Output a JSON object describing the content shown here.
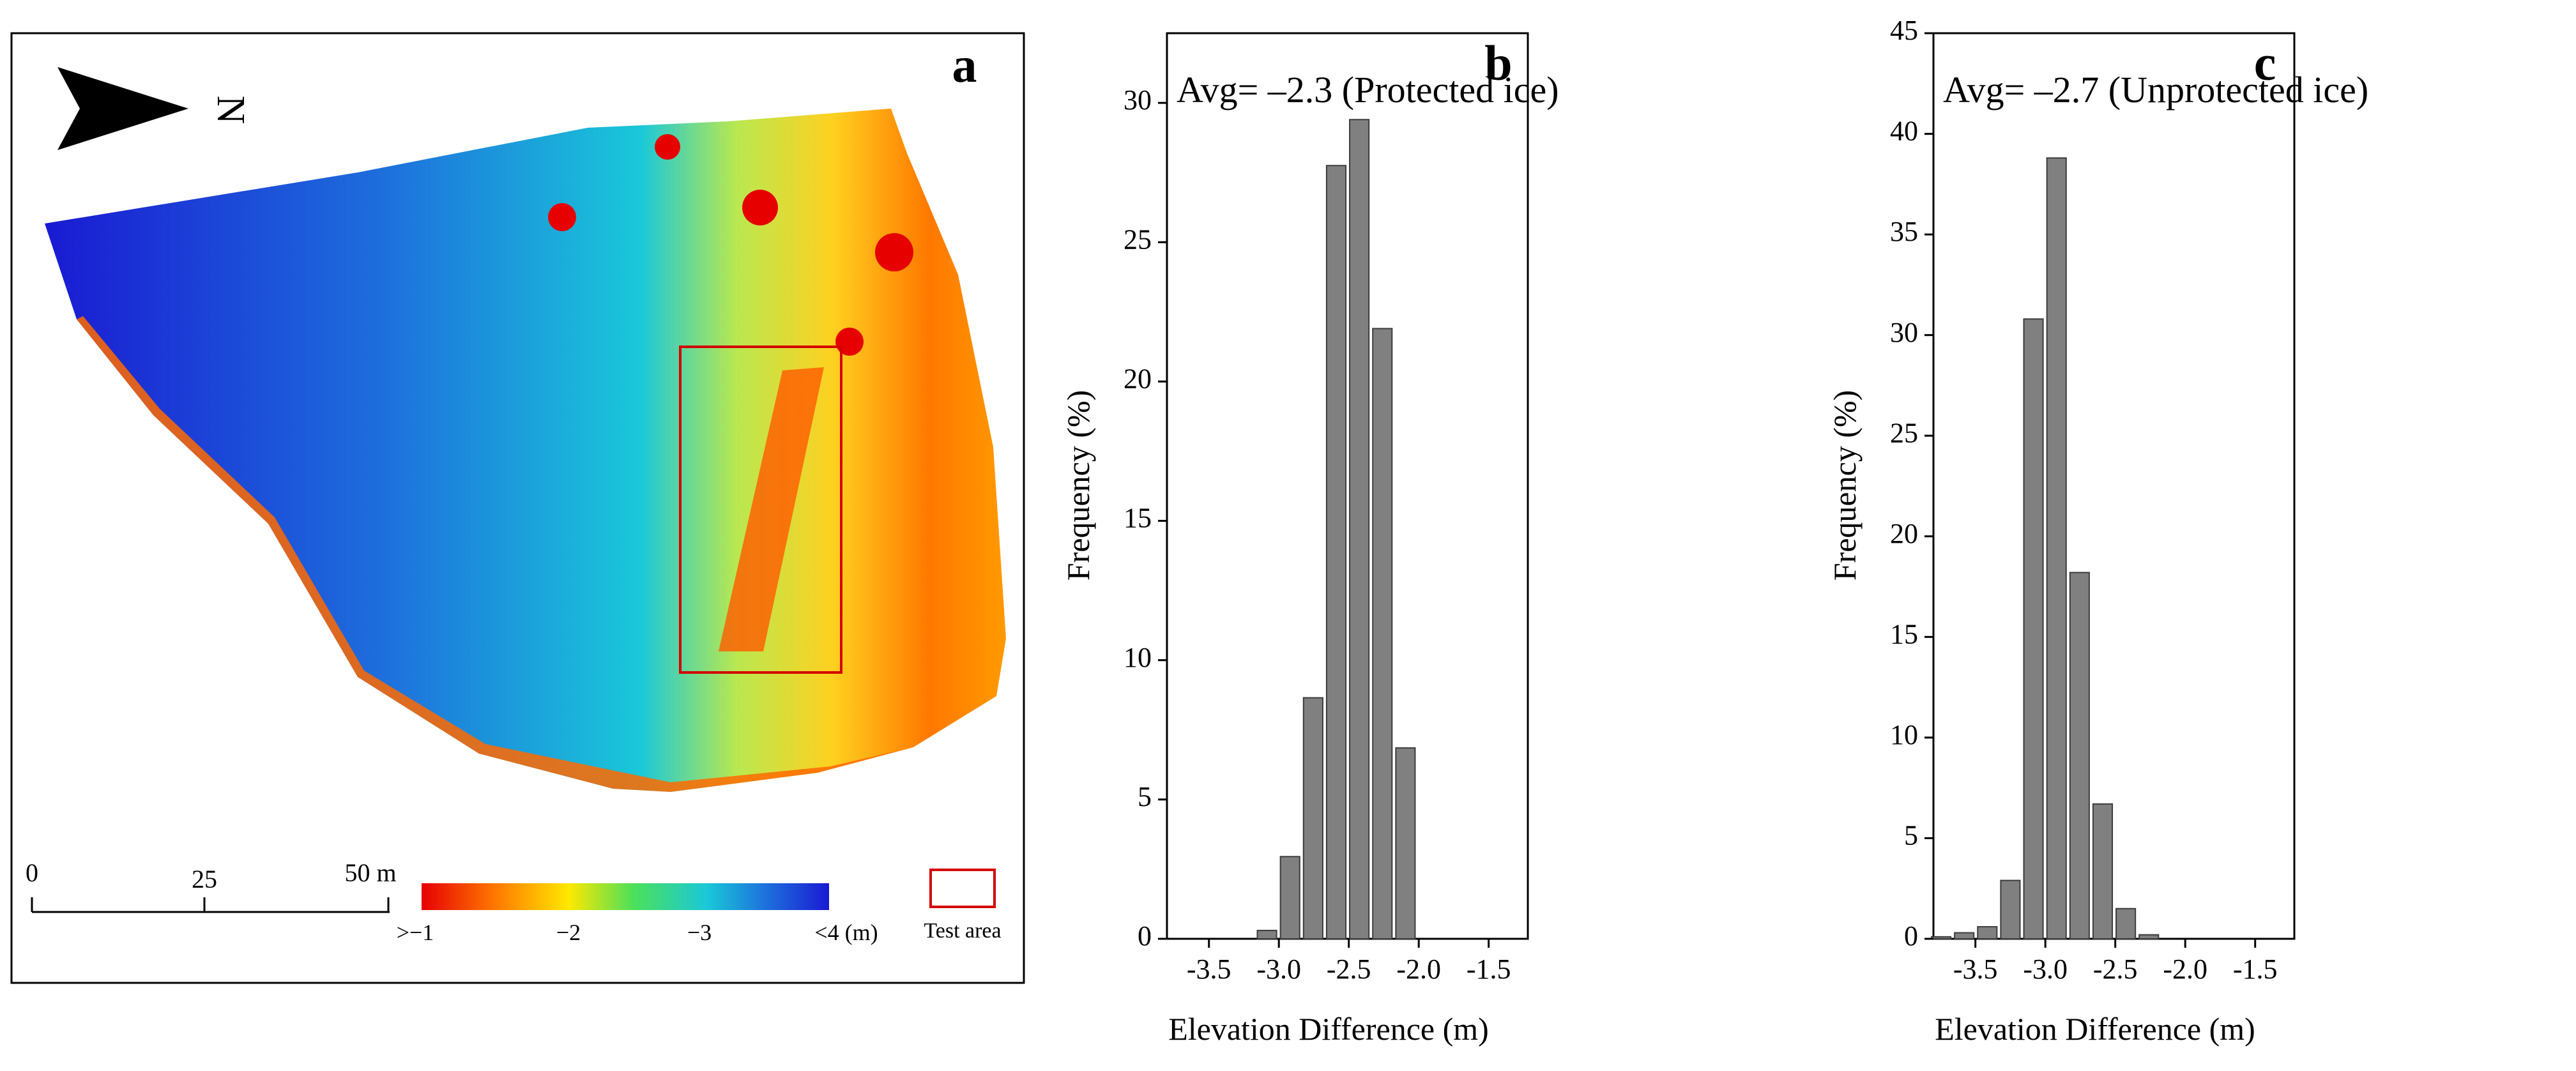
{
  "map_panel": {
    "letter": "a",
    "north_label": "N",
    "scale_ticks": [
      "0",
      "25",
      "50 m"
    ],
    "legend_labels": [
      ">−1",
      "−2",
      "−3",
      "<4 (m)"
    ],
    "test_area_label": "Test area",
    "colors": {
      "colormap": [
        "#e60000",
        "#ff7800",
        "#ffe800",
        "#4ce05a",
        "#1ac8d8",
        "#1e6edc",
        "#1a1ad2"
      ],
      "test_area": "#d40000",
      "frame": "#000000"
    }
  },
  "chart_data": [
    {
      "type": "bar",
      "panel_letter": "b",
      "annotation": "Avg= –2.3 (Protected ice)",
      "xlabel": "Elevation Difference (m)",
      "ylabel": "Frequency (%)",
      "xlim": [
        -3.8,
        -1.22
      ],
      "ylim": [
        0,
        32.5
      ],
      "xticks": [
        -3.5,
        -3.0,
        -2.5,
        -2.0,
        -1.5
      ],
      "xtick_labels": [
        "-3.5",
        "-3.0",
        "-2.5",
        "-2.0",
        "-1.5"
      ],
      "yticks": [
        0,
        5,
        10,
        15,
        20,
        25,
        30
      ],
      "ytick_labels": [
        "0",
        "5",
        "10",
        "15",
        "20",
        "25",
        "30"
      ],
      "bin_width": 0.165,
      "bin_centers": [
        -3.745,
        -3.58,
        -3.415,
        -3.25,
        -3.085,
        -2.92,
        -2.755,
        -2.59,
        -2.425,
        -2.26,
        -2.095,
        -1.93,
        -1.765,
        -1.6,
        -1.435
      ],
      "values": [
        0,
        0,
        0,
        0,
        0.3,
        2.95,
        8.65,
        27.75,
        29.4,
        21.9,
        6.85,
        0,
        0,
        0,
        0
      ]
    },
    {
      "type": "bar",
      "panel_letter": "c",
      "annotation": "Avg= –2.7 (Unprotected ice)",
      "xlabel": "Elevation Difference (m)",
      "ylabel": "Frequency (%)",
      "xlim": [
        -3.8,
        -1.22
      ],
      "ylim": [
        0,
        45
      ],
      "xticks": [
        -3.5,
        -3.0,
        -2.5,
        -2.0,
        -1.5
      ],
      "xtick_labels": [
        "-3.5",
        "-3.0",
        "-2.5",
        "-2.0",
        "-1.5"
      ],
      "yticks": [
        0,
        5,
        10,
        15,
        20,
        25,
        30,
        35,
        40,
        45
      ],
      "ytick_labels": [
        "0",
        "5",
        "10",
        "15",
        "20",
        "25",
        "30",
        "35",
        "40",
        "45"
      ],
      "bin_width": 0.165,
      "bin_centers": [
        -3.745,
        -3.58,
        -3.415,
        -3.25,
        -3.085,
        -2.92,
        -2.755,
        -2.59,
        -2.425,
        -2.26,
        -2.095,
        -1.93,
        -1.765,
        -1.6,
        -1.435
      ],
      "values": [
        0.1,
        0.3,
        0.6,
        2.9,
        30.8,
        38.8,
        18.2,
        6.7,
        1.5,
        0.2,
        0,
        0,
        0,
        0,
        0
      ]
    }
  ]
}
